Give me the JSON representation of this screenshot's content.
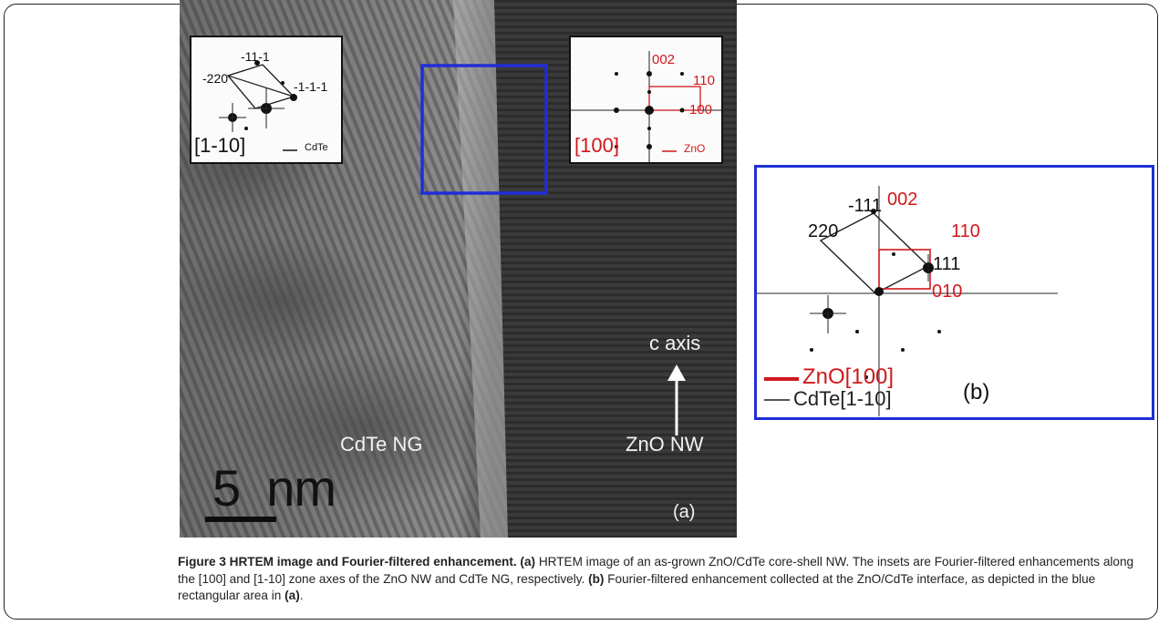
{
  "figure": {
    "panel_a": {
      "inset_cdte": {
        "spots": [
          "-11-1",
          "-220",
          "-1-1-1"
        ],
        "zone_axis": "[1-10]",
        "material": "CdTe"
      },
      "inset_zno": {
        "spots": [
          "002",
          "110",
          "100"
        ],
        "zone_axis": "[100]",
        "material": "ZnO"
      },
      "region_labels": {
        "cdte": "CdTe NG",
        "zno": "ZnO NW",
        "axis": "c axis"
      },
      "scale_bar": "5  nm",
      "panel_label": "(a)"
    },
    "panel_b": {
      "spots_black": [
        "-111",
        "220",
        "111"
      ],
      "spots_red": [
        "002",
        "110",
        "010"
      ],
      "legend": {
        "zno": "ZnO[100]",
        "cdte": "CdTe[1-10]"
      },
      "panel_label": "(b)",
      "colors": {
        "zno": "#d0181c",
        "cdte": "#222222",
        "frame": "#1f2ed6"
      }
    }
  },
  "caption": {
    "figure_number": "Figure 3",
    "title": "HRTEM image and Fourier-filtered enhancement.",
    "part_a_label": "(a)",
    "part_a_text": "HRTEM image of an as-grown ZnO/CdTe core-shell NW. The insets are Fourier-filtered enhancements along the [100] and [1-10] zone axes of the ZnO NW and CdTe NG, respectively.",
    "part_b_label": "(b)",
    "part_b_text": "Fourier-filtered enhancement collected at the ZnO/CdTe interface, as depicted in the blue rectangular area in",
    "part_b_ref": "(a)",
    "end": "."
  }
}
